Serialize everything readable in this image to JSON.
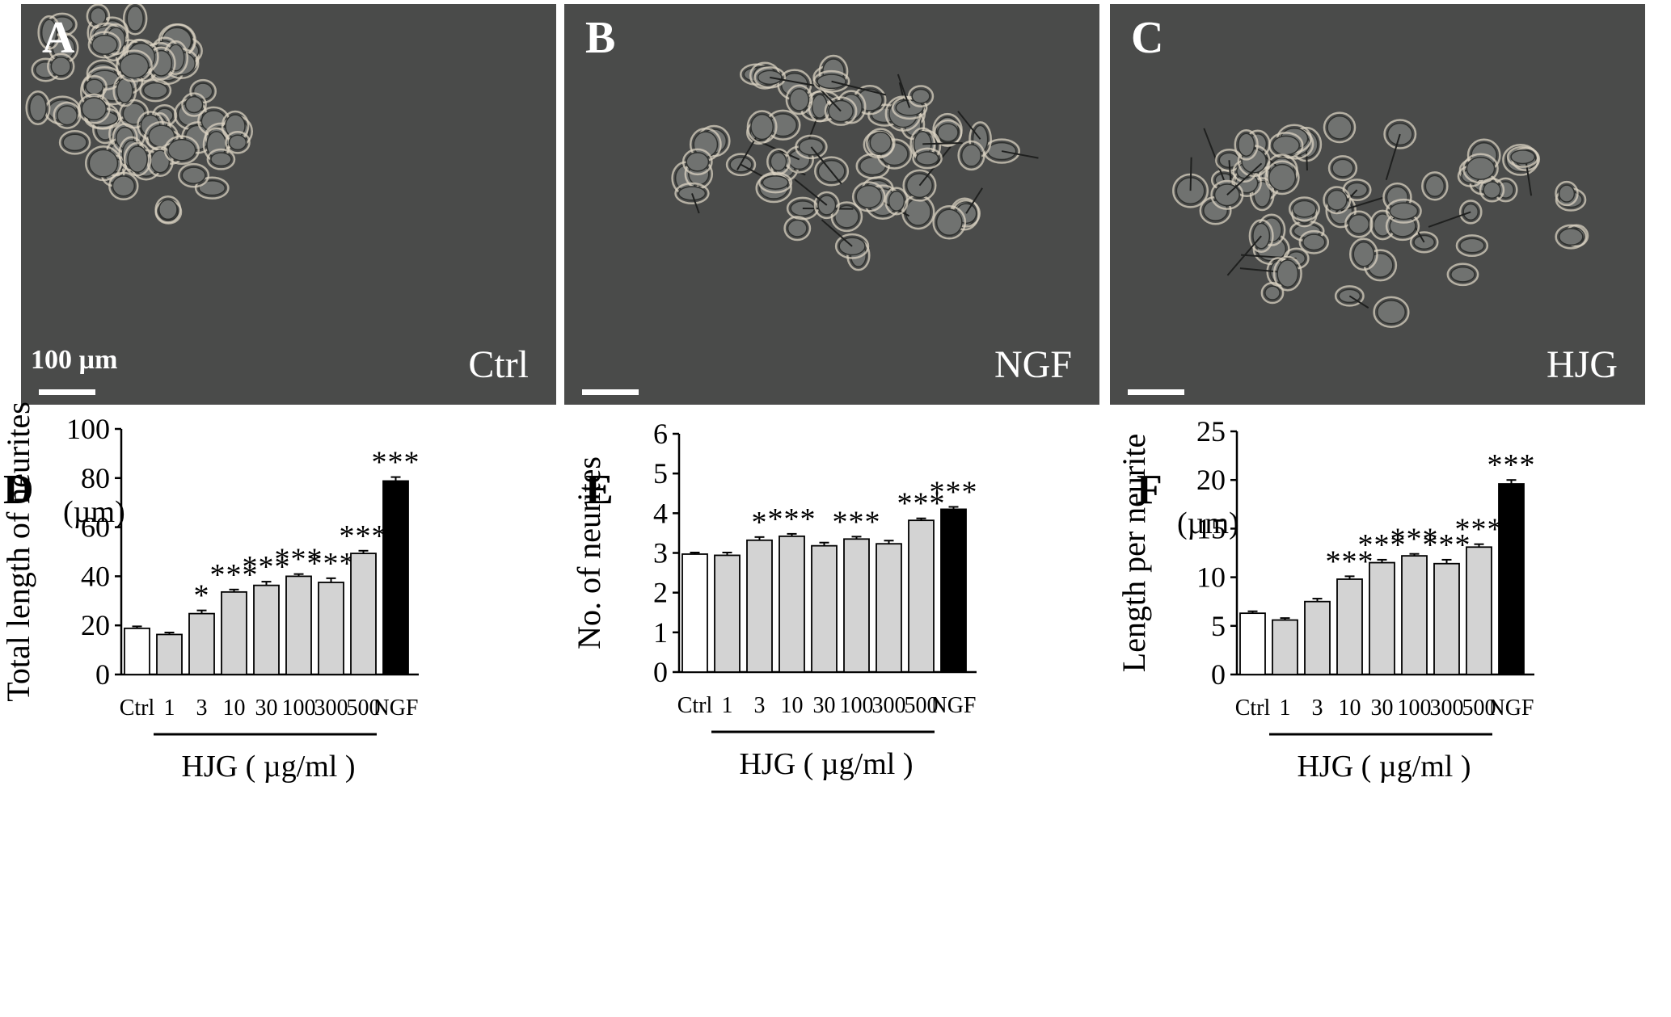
{
  "photos": [
    {
      "letter": "A",
      "condition": "Ctrl",
      "scale_label": "100 µm"
    },
    {
      "letter": "B",
      "condition": "NGF",
      "scale_label": ""
    },
    {
      "letter": "C",
      "condition": "HJG",
      "scale_label": ""
    }
  ],
  "chart_data": [
    {
      "panel": "D",
      "type": "bar",
      "unit": "(µm)",
      "ylabel": "Total length of neurites",
      "xlabel": "HJG ( µg/ml )",
      "categories": [
        "Ctrl",
        "1",
        "3",
        "10",
        "30",
        "100",
        "300",
        "500",
        "NGF"
      ],
      "values": [
        18.8,
        16.3,
        24.8,
        33.6,
        36.3,
        40.0,
        37.5,
        49.3,
        78.8
      ],
      "errors": [
        0.8,
        0.8,
        1.3,
        1.0,
        1.5,
        0.9,
        1.7,
        1.1,
        1.6
      ],
      "significance": [
        "",
        "",
        "*",
        "***",
        "***",
        "***",
        "***",
        "***",
        "***"
      ],
      "fill": [
        "#ffffff",
        "#d3d3d3",
        "#d3d3d3",
        "#d3d3d3",
        "#d3d3d3",
        "#d3d3d3",
        "#d3d3d3",
        "#d3d3d3",
        "#000000"
      ],
      "ylim": [
        0,
        100
      ],
      "yticks": [
        0,
        20,
        40,
        60,
        80,
        100
      ]
    },
    {
      "panel": "E",
      "type": "bar",
      "unit": "",
      "ylabel": "No. of neurites",
      "xlabel": "HJG ( µg/ml )",
      "categories": [
        "Ctrl",
        "1",
        "3",
        "10",
        "30",
        "100",
        "300",
        "500",
        "NGF"
      ],
      "values": [
        2.97,
        2.94,
        3.32,
        3.42,
        3.18,
        3.35,
        3.23,
        3.82,
        4.1
      ],
      "errors": [
        0.04,
        0.07,
        0.08,
        0.06,
        0.08,
        0.06,
        0.08,
        0.05,
        0.06
      ],
      "significance": [
        "",
        "",
        "*",
        "***",
        "",
        "***",
        "",
        "***",
        "***"
      ],
      "fill": [
        "#ffffff",
        "#d3d3d3",
        "#d3d3d3",
        "#d3d3d3",
        "#d3d3d3",
        "#d3d3d3",
        "#d3d3d3",
        "#d3d3d3",
        "#000000"
      ],
      "ylim": [
        0,
        6
      ],
      "yticks": [
        0,
        1,
        2,
        3,
        4,
        5,
        6
      ]
    },
    {
      "panel": "F",
      "type": "bar",
      "unit": "(µm)",
      "ylabel": "Length per neurite",
      "xlabel": "HJG ( µg/ml )",
      "categories": [
        "Ctrl",
        "1",
        "3",
        "10",
        "30",
        "100",
        "300",
        "500",
        "NGF"
      ],
      "values": [
        6.3,
        5.6,
        7.5,
        9.8,
        11.5,
        12.2,
        11.4,
        13.1,
        19.6
      ],
      "errors": [
        0.2,
        0.2,
        0.3,
        0.3,
        0.3,
        0.2,
        0.4,
        0.3,
        0.4
      ],
      "significance": [
        "",
        "",
        "",
        "***",
        "***",
        "***",
        "***",
        "***",
        "***"
      ],
      "fill": [
        "#ffffff",
        "#d3d3d3",
        "#d3d3d3",
        "#d3d3d3",
        "#d3d3d3",
        "#d3d3d3",
        "#d3d3d3",
        "#d3d3d3",
        "#000000"
      ],
      "ylim": [
        0,
        25
      ],
      "yticks": [
        0,
        5,
        10,
        15,
        20,
        25
      ]
    }
  ]
}
